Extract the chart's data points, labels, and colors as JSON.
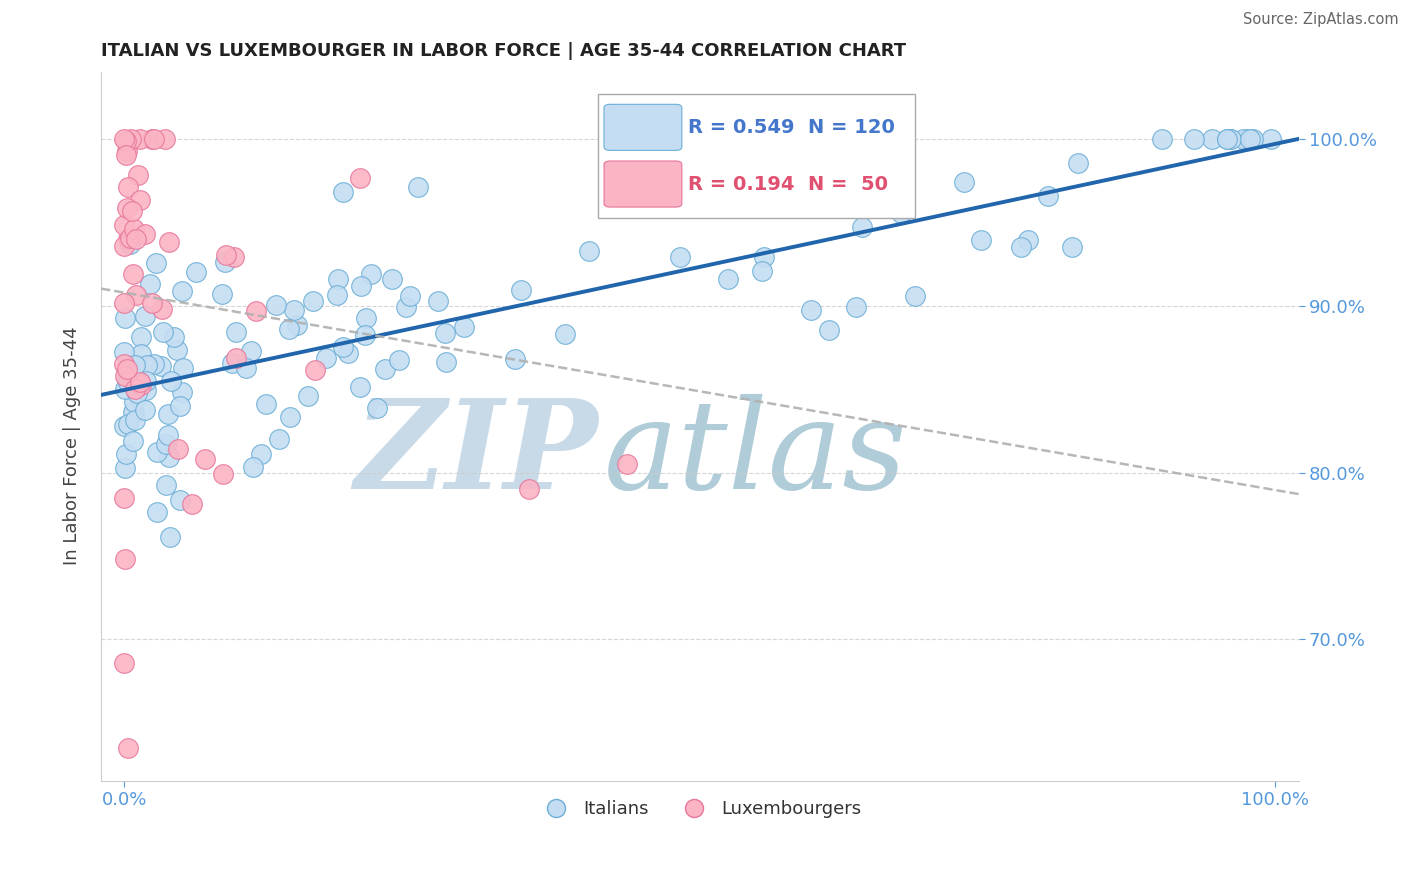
{
  "title": "ITALIAN VS LUXEMBOURGER IN LABOR FORCE | AGE 35-44 CORRELATION CHART",
  "source": "Source: ZipAtlas.com",
  "ylabel": "In Labor Force | Age 35-44",
  "xlim": [
    -0.02,
    1.02
  ],
  "ylim": [
    0.615,
    1.04
  ],
  "x_ticks": [
    0.0,
    1.0
  ],
  "x_tick_labels": [
    "0.0%",
    "100.0%"
  ],
  "y_ticks": [
    0.7,
    0.8,
    0.9,
    1.0
  ],
  "y_tick_labels": [
    "70.0%",
    "80.0%",
    "90.0%",
    "100.0%"
  ],
  "italian_R": 0.549,
  "italian_N": 120,
  "luxembourger_R": 0.194,
  "luxembourger_N": 50,
  "italian_color": "#c5ddf2",
  "italian_edge_color": "#6baed6",
  "luxembourger_color": "#fbb4c4",
  "luxembourger_edge_color": "#e7769a",
  "trend_italian_color": "#2166ac",
  "trend_luxembourger_color": "#c0c0c0",
  "legend_R_italian_color": "#4477cc",
  "legend_R_luxembourger_color": "#e05070",
  "watermark_zip_color": "#c8dae8",
  "watermark_atlas_color": "#b0ccd8",
  "background_color": "#ffffff",
  "grid_color": "#cccccc",
  "tick_color": "#5599dd",
  "spine_color": "#cccccc"
}
